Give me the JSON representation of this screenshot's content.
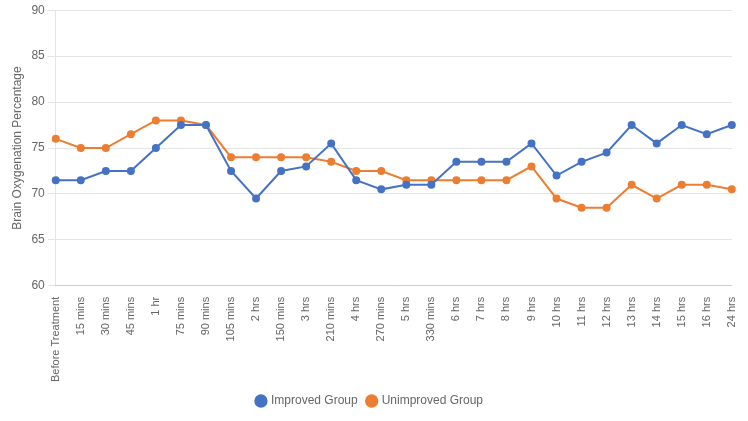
{
  "chart_data": {
    "type": "line",
    "ylabel": "Brain Oxygenation Percentage",
    "categories": [
      "Before Treatment",
      "15 mins",
      "30 mins",
      "45 mins",
      "1 hr",
      "75 mins",
      "90 mins",
      "105 mins",
      "2 hrs",
      "150 mins",
      "3 hrs",
      "210 mins",
      "4 hrs",
      "270 mins",
      "5 hrs",
      "330 mins",
      "6 hrs",
      "7 hrs",
      "8 hrs",
      "9 hrs",
      "10 hrs",
      "11 hrs",
      "12 hrs",
      "13 hrs",
      "14 hrs",
      "15 hrs",
      "16 hrs",
      "24 hrs"
    ],
    "series": [
      {
        "name": "Improved Group",
        "color": "#4472C4",
        "marker": "circle",
        "line_style": "solid",
        "values": [
          71.5,
          71.5,
          72.5,
          72.5,
          75.0,
          77.5,
          77.5,
          72.5,
          69.5,
          72.5,
          73.0,
          75.5,
          71.5,
          70.5,
          71.0,
          71.0,
          73.5,
          73.5,
          73.5,
          75.5,
          72.0,
          73.5,
          74.5,
          77.5,
          75.5,
          77.5,
          76.5,
          77.5
        ]
      },
      {
        "name": "Unimproved Group",
        "color": "#ED7D31",
        "marker": "circle",
        "line_style": "solid",
        "values": [
          76.0,
          75.0,
          75.0,
          76.5,
          78.0,
          78.0,
          77.5,
          74.0,
          74.0,
          74.0,
          74.0,
          73.5,
          72.5,
          72.5,
          71.5,
          71.5,
          71.5,
          71.5,
          71.5,
          73.0,
          69.5,
          68.5,
          68.5,
          71.0,
          69.5,
          71.0,
          71.0,
          70.5
        ]
      }
    ],
    "ylim": [
      60,
      90
    ],
    "yticks": [
      60,
      65,
      70,
      75,
      80,
      85,
      90
    ],
    "grid": "y",
    "legend": "bottom"
  }
}
